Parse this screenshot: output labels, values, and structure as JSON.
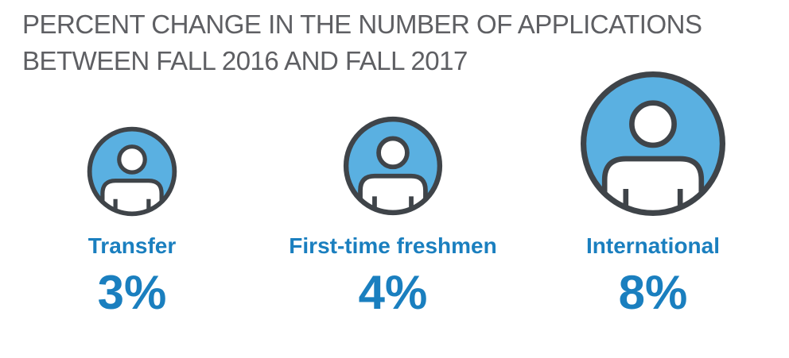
{
  "title": {
    "line1": "PERCENT CHANGE IN THE NUMBER OF APPLICATIONS",
    "line2": "BETWEEN FALL 2016 AND FALL 2017"
  },
  "colors": {
    "title": "#5e5f63",
    "accent": "#1a7fbf",
    "circle_fill": "#5ab0e1",
    "outline": "#3f4449"
  },
  "groups": [
    {
      "label": "Transfer",
      "value": "3%",
      "icon": "person-icon"
    },
    {
      "label": "First-time freshmen",
      "value": "4%",
      "icon": "person-icon"
    },
    {
      "label": "International",
      "value": "8%",
      "icon": "person-icon"
    }
  ]
}
